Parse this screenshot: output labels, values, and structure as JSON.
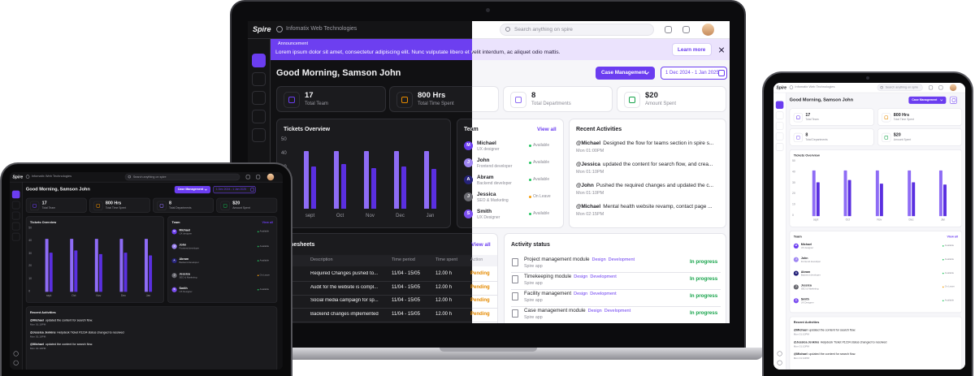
{
  "brand": "Spire",
  "company": "Infomatix Web Technologies",
  "search_placeholder": "Search anything on spire",
  "announcement": {
    "label": "Announcement",
    "text": "Lorem ipsum dolor sit amet, consectetur adipiscing elit. Nunc vulputate libero et velit interdum, ac aliquet odio mattis.",
    "button": "Learn more"
  },
  "greeting": "Good Morning, Samson John",
  "case_button": "Case Management",
  "date_range": "1 Dec 2024 - 1 Jan 2025",
  "stats": [
    {
      "value": 17,
      "label": "Total Team"
    },
    {
      "value": "800 Hrs",
      "label": "Total Time Spent"
    },
    {
      "value": 8,
      "label": "Total Departments"
    },
    {
      "value": "$20",
      "label": "Amount Spent"
    }
  ],
  "chart_data": {
    "type": "bar",
    "title": "Tickets Overview",
    "categories": [
      "sept",
      "Oct",
      "Nov",
      "Dec",
      "Jan"
    ],
    "series": [
      {
        "color": "#8e6cf5",
        "values": [
          42,
          42,
          42,
          42,
          42
        ]
      },
      {
        "color": "#5a2fe0",
        "values": [
          31,
          33,
          30,
          31,
          29
        ]
      }
    ],
    "ylim": [
      0,
      50
    ],
    "yticks": [
      0,
      10,
      20,
      30,
      40,
      50
    ],
    "grid": false
  },
  "team": {
    "title": "Team",
    "view_all": "View all",
    "members": [
      {
        "initial": "M",
        "name": "Michael",
        "role": "UX designer",
        "status": "Available",
        "status_color": "#22c55e",
        "avatar_color": "#6b3df0"
      },
      {
        "initial": "J",
        "name": "John",
        "role": "Frontend developer",
        "status": "Available",
        "status_color": "#22c55e",
        "avatar_color": "#9f86f2"
      },
      {
        "initial": "A",
        "name": "Abram",
        "role": "Backend developer",
        "status": "Available",
        "status_color": "#22c55e",
        "avatar_color": "#26237a"
      },
      {
        "initial": "J",
        "name": "Jessica",
        "role": "SEO & Marketing",
        "status": "On Leave",
        "status_color": "#f59e0b",
        "avatar_color": "#6b6b72"
      },
      {
        "initial": "S",
        "name": "Smith",
        "role": "UX Designer",
        "status": "Available",
        "status_color": "#22c55e",
        "avatar_color": "#7c4ff0"
      }
    ]
  },
  "recent_activities": {
    "title": "Recent Activities",
    "items": [
      {
        "who": "@Michael",
        "text": "Designed the flow for teams section in spire s...",
        "time": "Mon 01:00PM"
      },
      {
        "who": "@Jessica",
        "text": "updated the content for search flow, and crea...",
        "time": "Mon 01:10PM"
      },
      {
        "who": "@John",
        "text": "Pushed the required changes and updated the c...",
        "time": "Mon 01:10PM"
      },
      {
        "who": "@Michael",
        "text": "Mental health website revamp, contact page ...",
        "time": "Mon 02:15PM"
      }
    ]
  },
  "recent_short": [
    {
      "who": "@Michael",
      "text": "updated the content for search flow.",
      "time": "Mon 01:10PM"
    },
    {
      "who": "@Jessica Jenkins",
      "text": "Helpdesk Ticket #1234 status changed to resolved",
      "time": "Mon 01:10PM"
    },
    {
      "who": "@Michael",
      "text": "updated the content for search flow.",
      "time": "Mon 01:10PM"
    }
  ],
  "timesheets": {
    "title": "Timesheets",
    "view_all": "View all",
    "columns": [
      "Description",
      "Time period",
      "Time spent",
      "Action"
    ],
    "rows": [
      [
        "Required Changes pushed to...",
        "11/04 - 15/05",
        "12.00 h",
        "Pending"
      ],
      [
        "Audit for the website is compl...",
        "11/04 - 15/05",
        "12.00 h",
        "Pending"
      ],
      [
        "Social media campaign for sp...",
        "11/04 - 15/05",
        "12.00 h",
        "Pending"
      ],
      [
        "Backend changes implemented",
        "11/04 - 15/05",
        "12.00 h",
        "Pending"
      ]
    ]
  },
  "activity_status": {
    "title": "Activity status",
    "items": [
      {
        "title": "Project management module",
        "tags": [
          "Design",
          "Development"
        ],
        "app": "Spire app",
        "status": "In progress"
      },
      {
        "title": "Timekeeping module",
        "tags": [
          "Design",
          "Development"
        ],
        "app": "Spire app",
        "status": "In progress"
      },
      {
        "title": "Facility management",
        "tags": [
          "Design",
          "Development"
        ],
        "app": "Spire app",
        "status": "In progress"
      },
      {
        "title": "Case management module",
        "tags": [
          "Design",
          "Development"
        ],
        "app": "Spire app",
        "status": "In progress"
      }
    ]
  }
}
